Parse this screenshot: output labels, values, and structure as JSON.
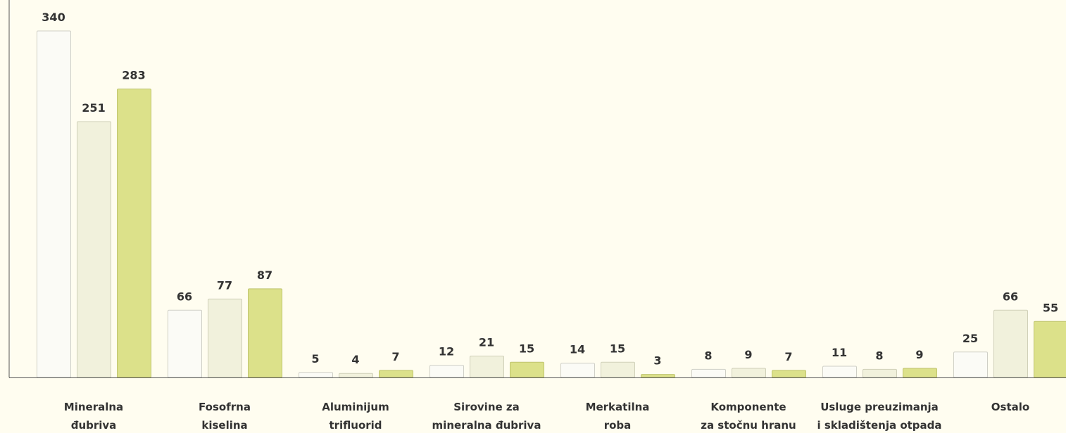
{
  "chart_data": {
    "type": "bar",
    "categories": [
      [
        "Mineralna",
        "đubriva"
      ],
      [
        "Fosofrna",
        "kiselina"
      ],
      [
        "Aluminijum",
        "trifluorid"
      ],
      [
        "Sirovine za",
        "mineralna đubriva"
      ],
      [
        "Merkatilna",
        "roba"
      ],
      [
        "Komponente",
        "za stočnu hranu"
      ],
      [
        "Usluge preuzimanja",
        "i skladištenja otpada"
      ],
      [
        "Ostalo"
      ]
    ],
    "series": [
      {
        "color": "#fbfbf6",
        "values": [
          340,
          66,
          5,
          12,
          14,
          8,
          11,
          25
        ]
      },
      {
        "color": "#f1f1dc",
        "values": [
          251,
          77,
          4,
          21,
          15,
          9,
          8,
          66
        ]
      },
      {
        "color": "#dce18a",
        "values": [
          283,
          87,
          7,
          15,
          3,
          7,
          9,
          55
        ]
      }
    ]
  }
}
